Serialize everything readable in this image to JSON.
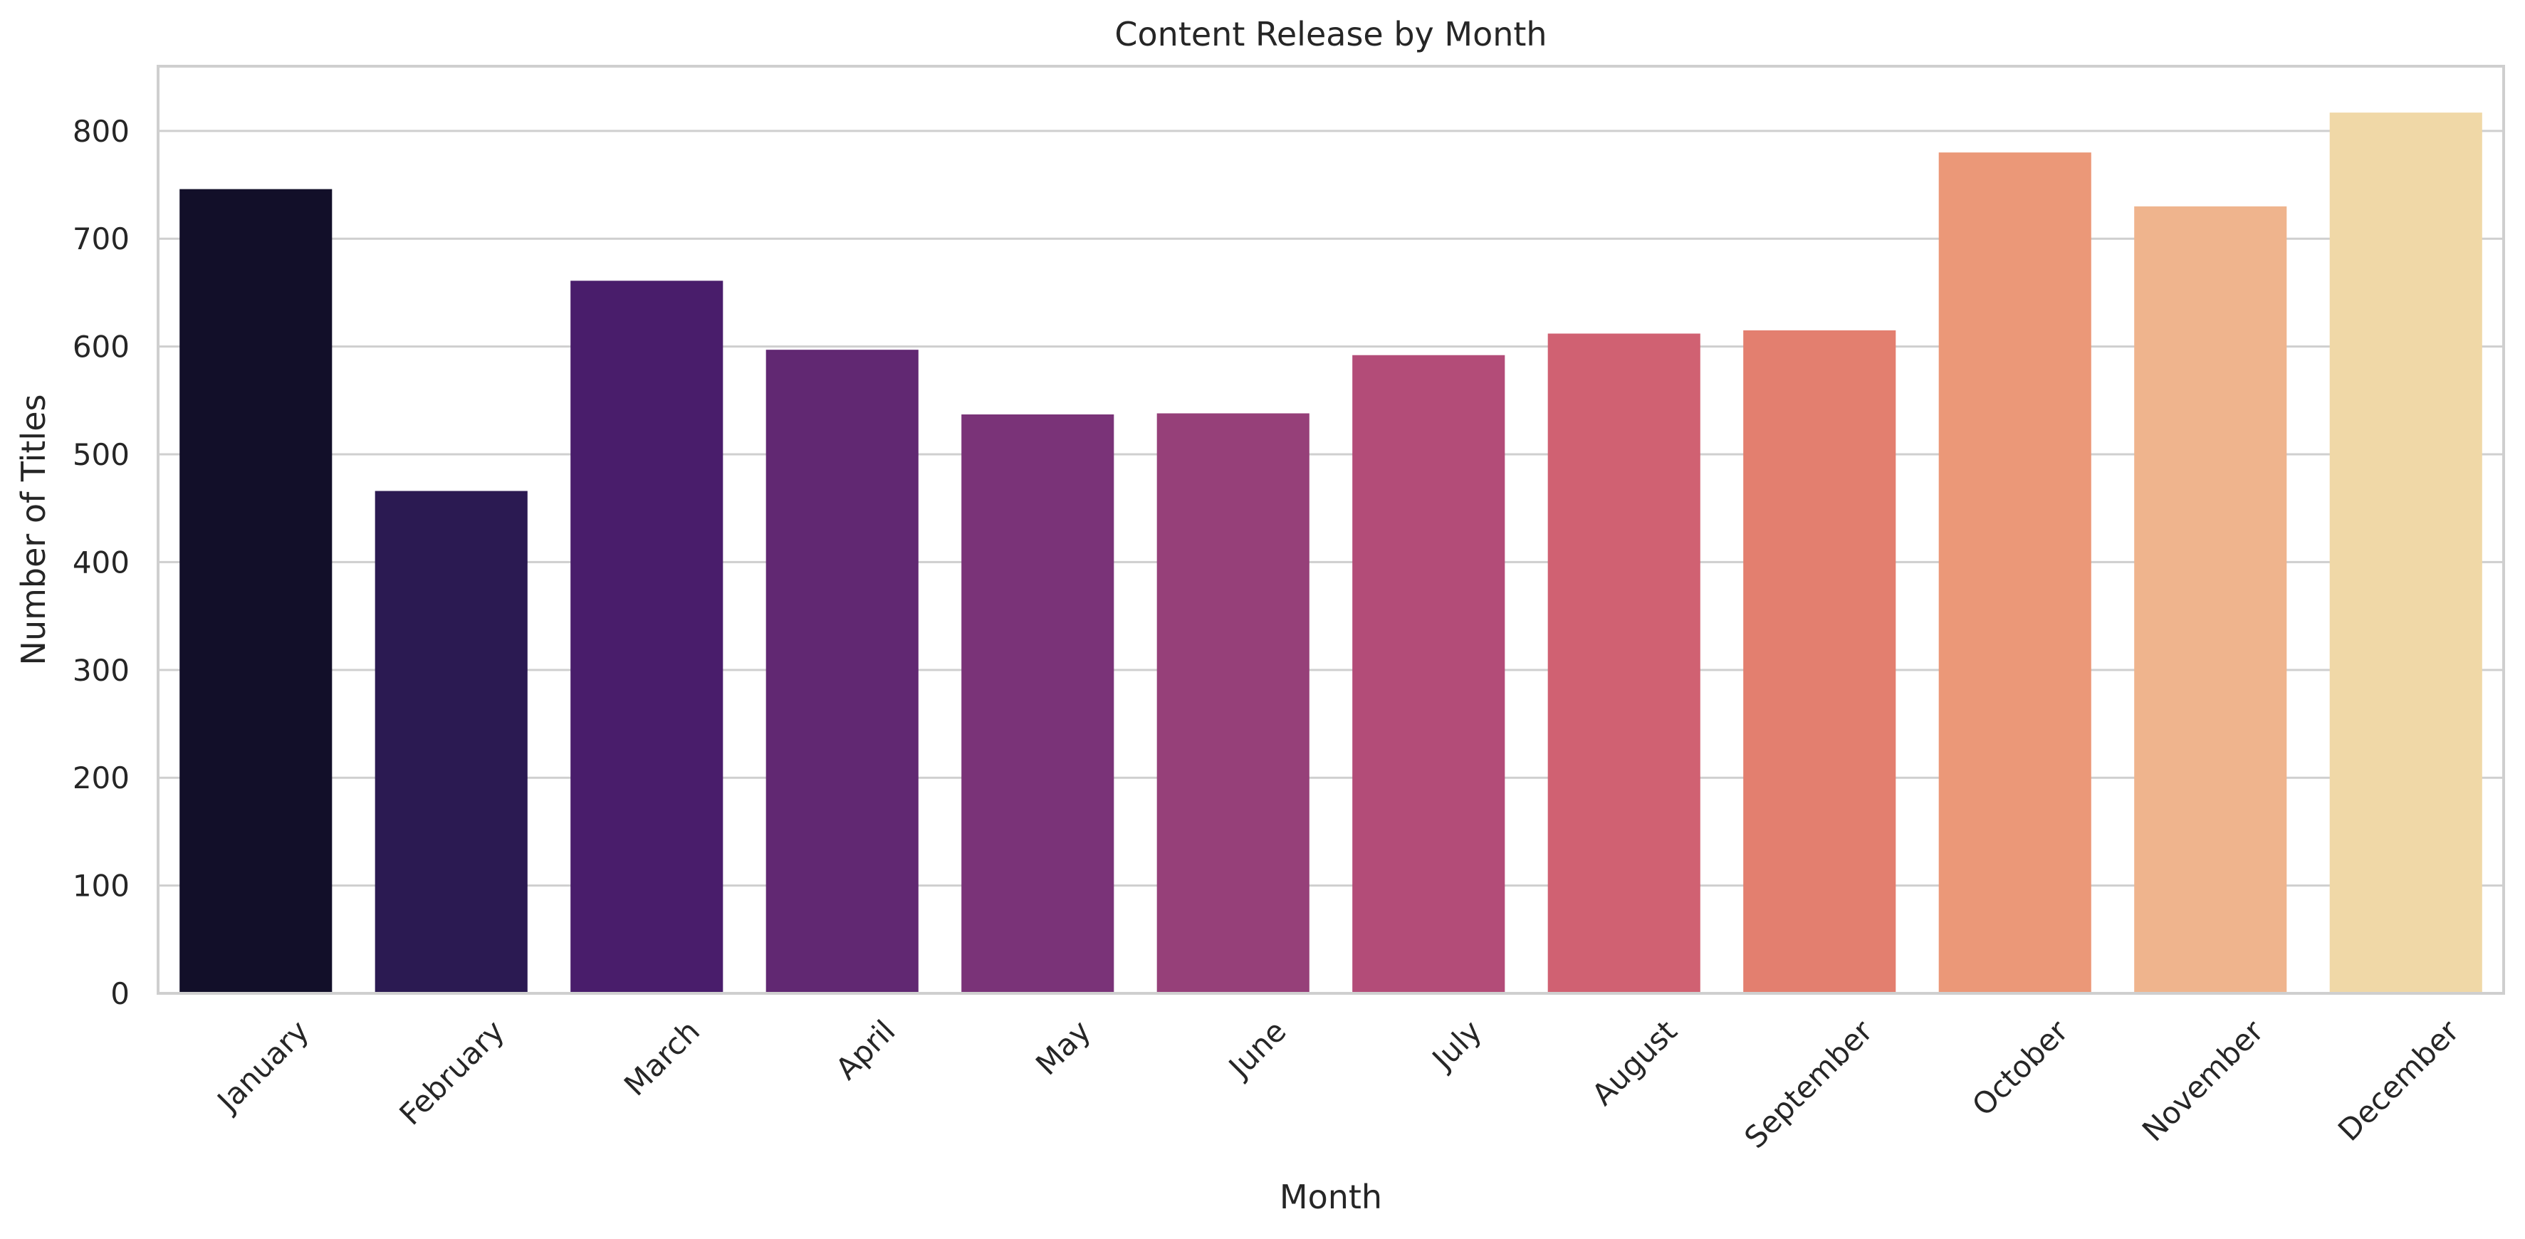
{
  "chart_data": {
    "type": "bar",
    "title": "Content Release by Month",
    "xlabel": "Month",
    "ylabel": "Number of Titles",
    "categories": [
      "January",
      "February",
      "March",
      "April",
      "May",
      "June",
      "July",
      "August",
      "September",
      "October",
      "November",
      "December"
    ],
    "values": [
      746,
      466,
      661,
      597,
      537,
      538,
      592,
      612,
      615,
      780,
      730,
      817
    ],
    "colors": [
      "#120f29",
      "#2b1a52",
      "#491d6b",
      "#612872",
      "#7a3378",
      "#964079",
      "#b34c78",
      "#d06172",
      "#e37f6f",
      "#eb9878",
      "#efb48d",
      "#f0d8a7"
    ],
    "ylim": [
      0,
      860
    ],
    "yticks": [
      0,
      100,
      200,
      300,
      400,
      500,
      600,
      700,
      800
    ],
    "grid": "horizontal",
    "legend": "none"
  }
}
